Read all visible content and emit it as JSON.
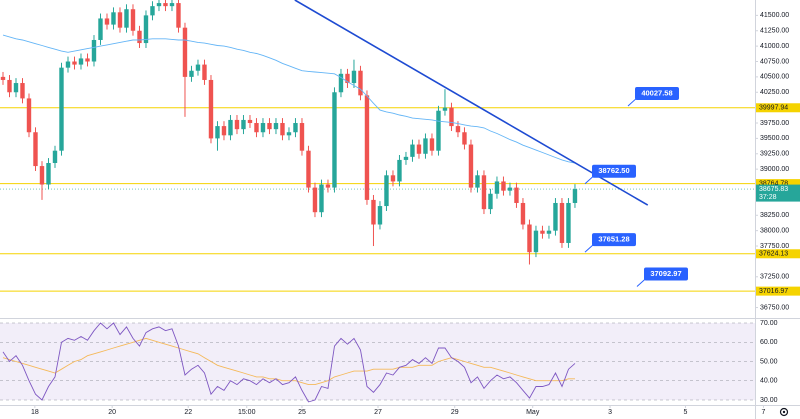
{
  "chart_data": {
    "type": "candlestick",
    "open": [
      40500,
      40450,
      40250,
      40400,
      40150,
      39600,
      39050,
      38750,
      39100,
      39300,
      40650,
      40750,
      40700,
      40800,
      40750,
      41100,
      41450,
      41350,
      41550,
      41300,
      41600,
      41250,
      41050,
      41500,
      41650,
      41700,
      41650,
      41700,
      41300,
      40500,
      40600,
      40700,
      40450,
      39500,
      39700,
      39550,
      39800,
      39650,
      39800,
      39750,
      39600,
      39750,
      39650,
      39750,
      39550,
      39600,
      39750,
      39300,
      38700,
      38300,
      38750,
      38700,
      40250,
      40550,
      40400,
      40600,
      40200,
      38500,
      38100,
      38400,
      38900,
      38800,
      39150,
      39200,
      39400,
      39250,
      39500,
      39300,
      39950,
      40000,
      39700,
      39600,
      39400,
      38700,
      38900,
      38350,
      38600,
      38800,
      38650,
      38700,
      38450,
      38100,
      37650,
      38000,
      37950,
      38000,
      38450,
      37800,
      38450
    ],
    "high": [
      40580,
      40530,
      40480,
      40480,
      40230,
      39680,
      39130,
      39180,
      39380,
      40730,
      40830,
      40830,
      40880,
      40880,
      41180,
      41530,
      41530,
      41630,
      41630,
      41680,
      41680,
      41330,
      41580,
      41730,
      41780,
      41780,
      41780,
      41780,
      41380,
      40680,
      40780,
      40780,
      40530,
      39780,
      39780,
      39880,
      39880,
      39880,
      39880,
      39830,
      39830,
      39830,
      39830,
      39830,
      39680,
      39830,
      39830,
      39380,
      38780,
      38830,
      38830,
      40330,
      40630,
      40630,
      40780,
      40680,
      40280,
      38580,
      38480,
      38980,
      38980,
      39230,
      39280,
      39480,
      39480,
      39580,
      39580,
      40030,
      40300,
      40080,
      39780,
      39680,
      39480,
      38980,
      38980,
      38680,
      38880,
      38880,
      38780,
      38780,
      38530,
      38180,
      38080,
      38080,
      38080,
      38530,
      38530,
      38530,
      38756
    ],
    "low": [
      40370,
      40170,
      40170,
      40070,
      39520,
      38970,
      38500,
      38670,
      39020,
      39220,
      40570,
      40620,
      40620,
      40670,
      40670,
      41020,
      41270,
      41270,
      41220,
      41220,
      41170,
      40970,
      40970,
      41420,
      41570,
      41570,
      41570,
      41220,
      39850,
      40420,
      40520,
      40370,
      39420,
      39300,
      39470,
      39470,
      39570,
      39570,
      39670,
      39520,
      39520,
      39570,
      39570,
      39470,
      39470,
      39520,
      39220,
      38620,
      38220,
      38220,
      38620,
      38620,
      40170,
      40320,
      40320,
      40120,
      38420,
      37750,
      38020,
      38320,
      38720,
      38720,
      39070,
      39120,
      39170,
      39170,
      39220,
      39220,
      39870,
      39620,
      39520,
      39320,
      38620,
      38620,
      38270,
      38270,
      38520,
      38570,
      38570,
      38370,
      38020,
      37450,
      37570,
      37870,
      37870,
      37920,
      37720,
      37720,
      38370
    ],
    "close": [
      40450,
      40250,
      40400,
      40150,
      39600,
      39050,
      38750,
      39100,
      39300,
      40650,
      40750,
      40700,
      40800,
      40750,
      41100,
      41450,
      41350,
      41550,
      41300,
      41600,
      41250,
      41050,
      41500,
      41650,
      41700,
      41650,
      41700,
      41300,
      40500,
      40600,
      40700,
      40450,
      39500,
      39700,
      39550,
      39800,
      39650,
      39800,
      39750,
      39600,
      39750,
      39650,
      39750,
      39550,
      39600,
      39750,
      39300,
      38700,
      38300,
      38750,
      38700,
      40250,
      40550,
      40400,
      40600,
      40200,
      38500,
      38100,
      38400,
      38900,
      38800,
      39150,
      39200,
      39400,
      39250,
      39500,
      39300,
      39950,
      40000,
      39700,
      39600,
      39400,
      38700,
      38900,
      38350,
      38600,
      38800,
      38650,
      38700,
      38450,
      38100,
      37650,
      38000,
      37950,
      38000,
      38450,
      37800,
      38450,
      38675.83
    ],
    "colors": {
      "up": "#26a69a",
      "down": "#ef5350"
    },
    "ma": {
      "color": "#64b5f6",
      "values": [
        41180,
        41150,
        41120,
        41100,
        41070,
        41040,
        41010,
        40980,
        40950,
        40920,
        40900,
        40920,
        40940,
        40960,
        40980,
        41000,
        41020,
        41040,
        41060,
        41080,
        41100,
        41100,
        41110,
        41120,
        41120,
        41120,
        41110,
        41100,
        41100,
        41080,
        41060,
        41050,
        41030,
        41010,
        41000,
        40980,
        40950,
        40930,
        40900,
        40880,
        40850,
        40810,
        40770,
        40720,
        40680,
        40640,
        40600,
        40590,
        40580,
        40570,
        40560,
        40550,
        40490,
        40420,
        40360,
        40300,
        40190,
        40070,
        39960,
        39930,
        39910,
        39880,
        39860,
        39830,
        39820,
        39810,
        39800,
        39780,
        39770,
        39760,
        39740,
        39720,
        39700,
        39690,
        39670,
        39620,
        39580,
        39530,
        39480,
        39440,
        39390,
        39350,
        39310,
        39270,
        39230,
        39190,
        39150,
        39120,
        39100
      ]
    },
    "xlim": [
      -0.46,
      115.7
    ],
    "xticks": [
      {
        "value": 4.9,
        "label": "18"
      },
      {
        "value": 16.8,
        "label": "20"
      },
      {
        "value": 28.5,
        "label": "22"
      },
      {
        "value": 37.5,
        "label": "15:00"
      },
      {
        "value": 46,
        "label": "25"
      },
      {
        "value": 57.7,
        "label": "27"
      },
      {
        "value": 69.5,
        "label": "29"
      },
      {
        "value": 81.5,
        "label": "May"
      },
      {
        "value": 93.4,
        "label": "3"
      },
      {
        "value": 105,
        "label": "5"
      },
      {
        "value": 117,
        "label": "7"
      }
    ],
    "ylim": [
      36580,
      41750
    ],
    "yticks": [
      {
        "value": 41500,
        "label": "41500.00"
      },
      {
        "value": 41250,
        "label": "41250.00"
      },
      {
        "value": 41000,
        "label": "41000.00"
      },
      {
        "value": 40750,
        "label": "40750.00"
      },
      {
        "value": 40500,
        "label": "40500.00"
      },
      {
        "value": 40250,
        "label": "40250.00"
      },
      {
        "value": 39750,
        "label": "39750.00"
      },
      {
        "value": 39500,
        "label": "39500.00"
      },
      {
        "value": 39250,
        "label": "39250.00"
      },
      {
        "value": 39000,
        "label": "39000.00"
      },
      {
        "value": 38250,
        "label": "38250.00"
      },
      {
        "value": 38000,
        "label": "38000.00"
      },
      {
        "value": 37750,
        "label": "37750.00"
      },
      {
        "value": 37250,
        "label": "37250.00"
      },
      {
        "value": 36750,
        "label": "36750.00"
      }
    ],
    "levels": [
      39997.94,
      38764.78,
      37624.13,
      37016.97
    ],
    "level_color": "#f5d300",
    "last_price": 38675.83,
    "countdown": "37:28",
    "callouts": [
      40027.58,
      {
        "value": 38762.5,
        "label": "38762.50"
      },
      37651.28,
      37092.97
    ],
    "callout_color": "#2962ff",
    "trendline": {
      "x": [
        44.9,
        99.2
      ],
      "y": [
        41750,
        38416
      ],
      "color": "#1e4bd2"
    },
    "rsi": {
      "color": "#7e57c2",
      "ma_color": "#f5b95a",
      "values": [
        55,
        50,
        53,
        48,
        40,
        33,
        30,
        37,
        42,
        60,
        62,
        61,
        63,
        61,
        66,
        70,
        67,
        70,
        64,
        68,
        62,
        58,
        65,
        67,
        68,
        66,
        67,
        58,
        43,
        46,
        48,
        44,
        33,
        37,
        35,
        40,
        38,
        41,
        40,
        38,
        41,
        39,
        41,
        38,
        39,
        42,
        35,
        29,
        30,
        37,
        36,
        58,
        62,
        59,
        62,
        56,
        37,
        34,
        38,
        44,
        43,
        47,
        48,
        51,
        49,
        52,
        49,
        57,
        57,
        52,
        50,
        47,
        39,
        42,
        36,
        40,
        43,
        41,
        42,
        39,
        35,
        31,
        37,
        37,
        38,
        44,
        37,
        46,
        49
      ],
      "ma": [
        52,
        51,
        50,
        49,
        48,
        47,
        46,
        45,
        44,
        46,
        48,
        50,
        51,
        53,
        54,
        55,
        56,
        57,
        58,
        59,
        60,
        61,
        62,
        61,
        60,
        59,
        58,
        57,
        56,
        55,
        54,
        52,
        50,
        48,
        47,
        46,
        45,
        44,
        43,
        42,
        42,
        41,
        41,
        40,
        40,
        40,
        39,
        38,
        38,
        39,
        40,
        42,
        43,
        44,
        45,
        45,
        45,
        46,
        46,
        46,
        46,
        47,
        47,
        47,
        48,
        48,
        48,
        50,
        51,
        52,
        51,
        50,
        49,
        48,
        47,
        47,
        46,
        45,
        44,
        43,
        42,
        41,
        40,
        40,
        40,
        40,
        40,
        41,
        41
      ],
      "ylim": [
        27.4,
        72.6
      ],
      "yticks": [
        {
          "value": 70,
          "label": "70.00"
        },
        {
          "value": 60,
          "label": "60.00"
        },
        {
          "value": 50,
          "label": "50.00"
        },
        {
          "value": 40,
          "label": "40.00"
        },
        {
          "value": 30,
          "label": "30.00"
        }
      ]
    }
  }
}
